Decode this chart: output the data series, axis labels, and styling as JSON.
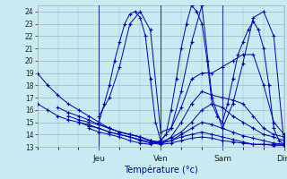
{
  "xlabel": "Température (°c)",
  "bg_color": "#c8eaf0",
  "line_color": "#0000bb",
  "grid_color": "#99bbcc",
  "ylim": [
    13,
    24.5
  ],
  "yticks": [
    13,
    14,
    15,
    16,
    17,
    18,
    19,
    20,
    21,
    22,
    23,
    24
  ],
  "day_labels": [
    "Jeu",
    "Ven",
    "Sam",
    "Dim"
  ],
  "day_positions": [
    0.25,
    0.5,
    0.75,
    1.0
  ],
  "series": [
    {
      "x": [
        0.0,
        0.042,
        0.083,
        0.125,
        0.167,
        0.208,
        0.25,
        0.292,
        0.333,
        0.375,
        0.417,
        0.458,
        0.5,
        0.542,
        0.583,
        0.625,
        0.667,
        0.708,
        0.75,
        0.792,
        0.833,
        0.875,
        0.917,
        0.958,
        1.0
      ],
      "y": [
        19.0,
        18.0,
        17.2,
        16.5,
        16.0,
        15.5,
        15.0,
        14.5,
        14.2,
        14.0,
        13.8,
        13.5,
        13.2,
        13.3,
        13.5,
        13.7,
        13.8,
        13.7,
        13.5,
        13.4,
        13.3,
        13.2,
        13.2,
        13.2,
        13.2
      ]
    },
    {
      "x": [
        0.0,
        0.042,
        0.083,
        0.125,
        0.167,
        0.208,
        0.25,
        0.292,
        0.333,
        0.375,
        0.417,
        0.458,
        0.5,
        0.542,
        0.583,
        0.625,
        0.667,
        0.708,
        0.75,
        0.792,
        0.833,
        0.875,
        0.917,
        0.958,
        1.0
      ],
      "y": [
        16.5,
        16.0,
        15.5,
        15.2,
        15.0,
        14.7,
        14.5,
        14.2,
        14.0,
        13.8,
        13.6,
        13.4,
        13.3,
        13.5,
        13.8,
        14.0,
        14.2,
        14.0,
        13.8,
        13.6,
        13.4,
        13.2,
        13.2,
        13.1,
        13.1
      ]
    },
    {
      "x": [
        0.083,
        0.125,
        0.167,
        0.208,
        0.25,
        0.292,
        0.333,
        0.375,
        0.417,
        0.458,
        0.5,
        0.542,
        0.583,
        0.625,
        0.667,
        0.708,
        0.75,
        0.792,
        0.833,
        0.875,
        0.917,
        0.958,
        1.0
      ],
      "y": [
        16.2,
        15.8,
        15.5,
        15.2,
        14.8,
        14.5,
        14.2,
        14.0,
        13.8,
        13.5,
        13.3,
        13.5,
        14.0,
        14.5,
        15.0,
        14.8,
        14.5,
        14.2,
        13.9,
        13.7,
        13.5,
        13.3,
        13.2
      ]
    },
    {
      "x": [
        0.125,
        0.167,
        0.208,
        0.25,
        0.292,
        0.333,
        0.375,
        0.417,
        0.458,
        0.5,
        0.542,
        0.583,
        0.625,
        0.667,
        0.708,
        0.75,
        0.792,
        0.833,
        0.875,
        0.917,
        0.958,
        1.0
      ],
      "y": [
        15.5,
        15.2,
        15.0,
        14.8,
        14.5,
        14.2,
        14.0,
        13.8,
        13.5,
        13.4,
        13.7,
        14.2,
        15.0,
        16.0,
        16.5,
        16.2,
        15.5,
        15.0,
        14.5,
        14.0,
        13.8,
        13.5
      ]
    },
    {
      "x": [
        0.167,
        0.208,
        0.25,
        0.292,
        0.333,
        0.375,
        0.417,
        0.458,
        0.5,
        0.542,
        0.583,
        0.625,
        0.667,
        0.708,
        0.75,
        0.792,
        0.833,
        0.875,
        0.917,
        0.958,
        1.0
      ],
      "y": [
        15.0,
        14.8,
        14.5,
        14.2,
        14.0,
        13.8,
        13.5,
        13.3,
        13.2,
        13.8,
        15.0,
        16.5,
        17.5,
        17.2,
        17.0,
        16.8,
        16.5,
        15.5,
        14.5,
        14.0,
        13.8
      ]
    },
    {
      "x": [
        0.208,
        0.25,
        0.292,
        0.333,
        0.375,
        0.417,
        0.458,
        0.5,
        0.542,
        0.583,
        0.625,
        0.667,
        0.708,
        0.75,
        0.792,
        0.833,
        0.875,
        0.917,
        0.958,
        1.0
      ],
      "y": [
        14.5,
        14.2,
        14.0,
        13.8,
        13.5,
        13.3,
        13.2,
        13.5,
        14.5,
        16.2,
        18.5,
        19.0,
        19.0,
        19.5,
        20.0,
        20.5,
        20.5,
        18.0,
        15.0,
        14.0
      ]
    },
    {
      "x": [
        0.25,
        0.271,
        0.292,
        0.313,
        0.333,
        0.354,
        0.375,
        0.396,
        0.417,
        0.438,
        0.458,
        0.479,
        0.5,
        0.521,
        0.542,
        0.563,
        0.583,
        0.604,
        0.625,
        0.646,
        0.667,
        0.688,
        0.708,
        0.729,
        0.75,
        0.771,
        0.792,
        0.813,
        0.833,
        0.854,
        0.875,
        0.896,
        0.917,
        0.938,
        0.958,
        0.979,
        1.0
      ],
      "y": [
        15.0,
        16.5,
        18.0,
        20.0,
        21.5,
        23.0,
        23.8,
        24.0,
        23.5,
        22.0,
        18.5,
        15.0,
        13.5,
        14.0,
        16.0,
        18.5,
        21.0,
        23.0,
        24.5,
        24.0,
        23.0,
        20.0,
        16.5,
        15.5,
        15.0,
        16.5,
        18.5,
        20.5,
        21.5,
        22.5,
        23.2,
        22.5,
        21.0,
        18.0,
        14.5,
        13.5,
        13.2
      ]
    },
    {
      "x": [
        0.25,
        0.292,
        0.333,
        0.375,
        0.417,
        0.458,
        0.5,
        0.542,
        0.583,
        0.625,
        0.667,
        0.708,
        0.75,
        0.792,
        0.833,
        0.875,
        0.917,
        0.958,
        1.0
      ],
      "y": [
        15.5,
        17.0,
        19.5,
        23.0,
        24.0,
        22.5,
        14.2,
        14.5,
        17.5,
        21.5,
        24.5,
        17.0,
        14.5,
        16.5,
        19.8,
        23.5,
        24.0,
        22.0,
        13.2
      ]
    }
  ],
  "vlines_x": [
    0.25,
    0.5,
    0.75,
    1.0
  ],
  "vlines_color": "#3333aa"
}
